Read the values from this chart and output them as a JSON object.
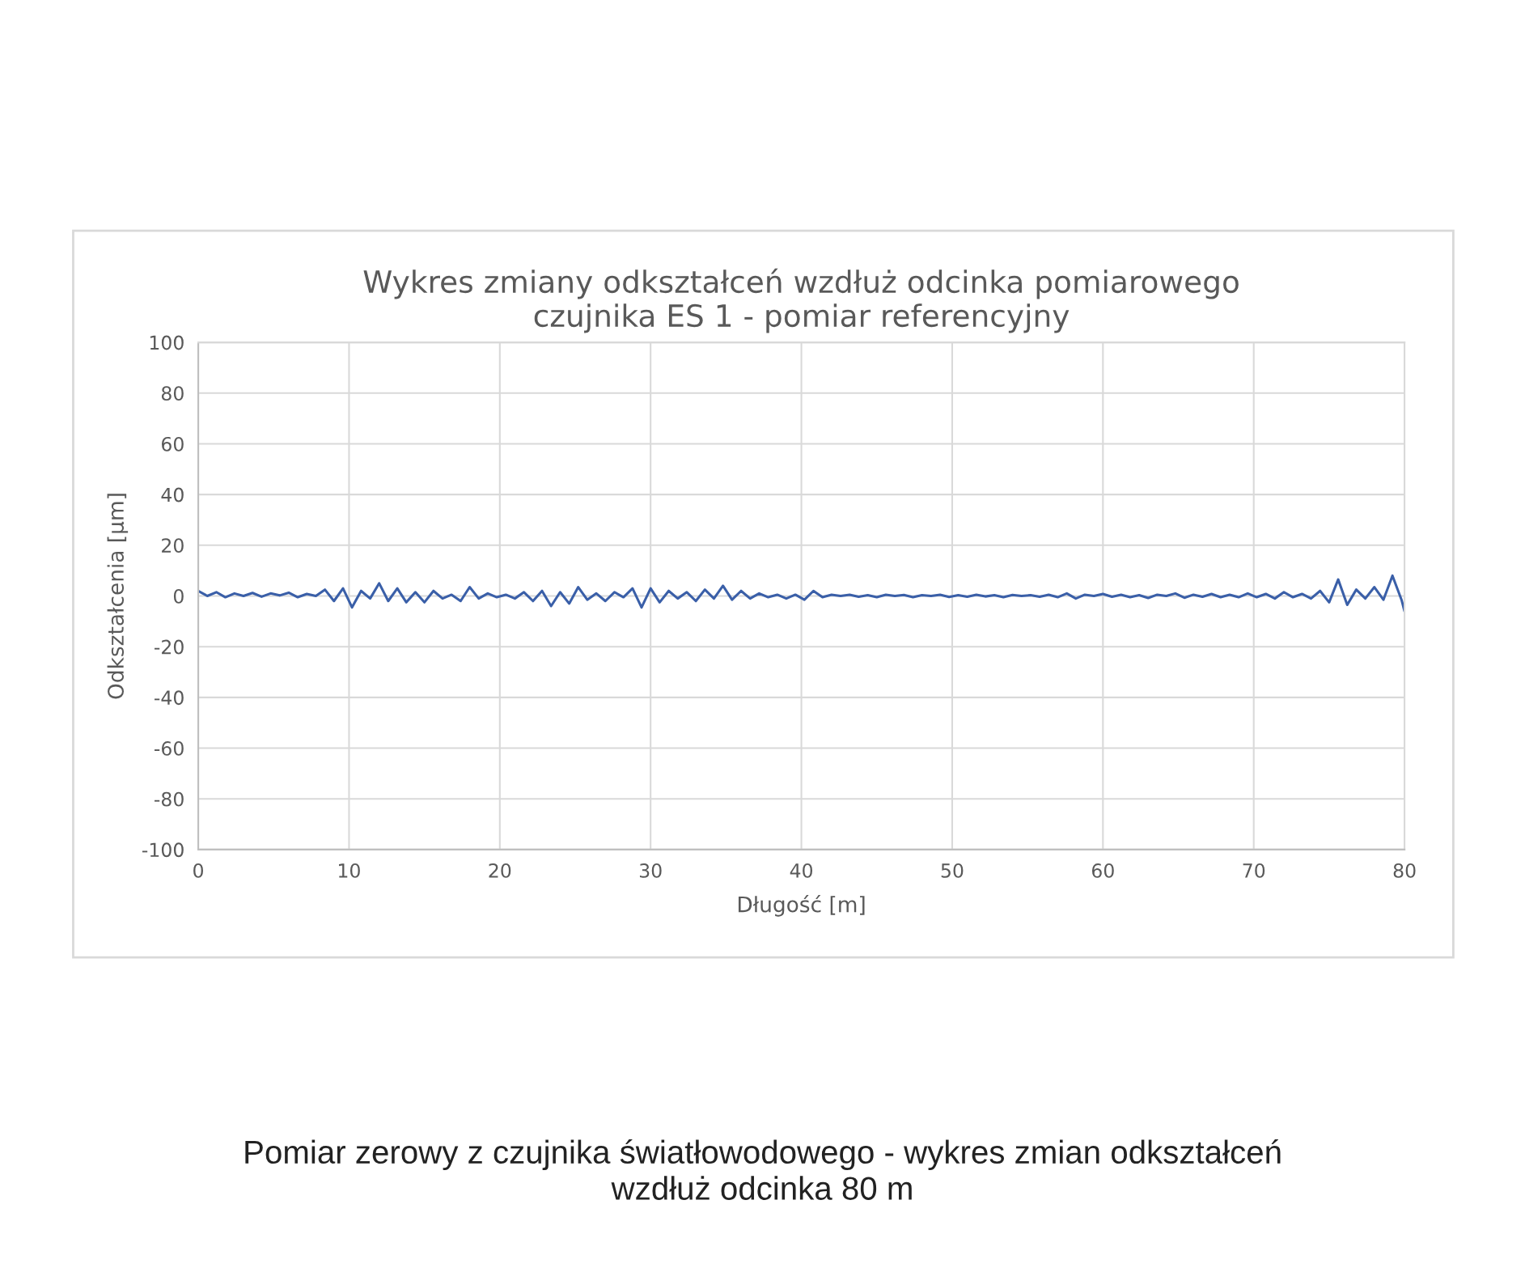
{
  "chart_data": {
    "type": "line",
    "title": "Wykres zmiany odkształceń wzdłuż odcinka pomiarowego\nczujnika ES 1 - pomiar referencyjny",
    "xlabel": "Długość [m]",
    "ylabel": "Odkształcenia [µm]",
    "annotations": [
      "Pomiar zerowy z czujnika światłowodowego - wykres zmian odkształceń\nwzdłuż odcinka 80 m"
    ],
    "xlim": [
      0,
      80
    ],
    "xticks": [
      0,
      10,
      20,
      30,
      40,
      50,
      60,
      70,
      80
    ],
    "ylim": [
      -100,
      100
    ],
    "yticks": [
      -100,
      -80,
      -60,
      -40,
      -20,
      0,
      20,
      40,
      60,
      80,
      100
    ],
    "grid": true,
    "series": [
      {
        "color": "#3a5fa8",
        "x": [
          0,
          0.6,
          1.2,
          1.8,
          2.4,
          3,
          3.6,
          4.2,
          4.8,
          5.4,
          6,
          6.6,
          7.2,
          7.8,
          8.4,
          9,
          9.6,
          10.2,
          10.8,
          11.4,
          12,
          12.6,
          13.2,
          13.8,
          14.4,
          15,
          15.6,
          16.2,
          16.8,
          17.4,
          18,
          18.6,
          19.2,
          19.8,
          20.4,
          21,
          21.6,
          22.2,
          22.8,
          23.4,
          24,
          24.6,
          25.2,
          25.8,
          26.4,
          27,
          27.6,
          28.2,
          28.8,
          29.4,
          30,
          30.6,
          31.2,
          31.8,
          32.4,
          33,
          33.6,
          34.2,
          34.8,
          35.4,
          36,
          36.6,
          37.2,
          37.8,
          38.4,
          39,
          39.6,
          40.2,
          40.8,
          41.4,
          42,
          42.6,
          43.2,
          43.8,
          44.4,
          45,
          45.6,
          46.2,
          46.8,
          47.4,
          48,
          48.6,
          49.2,
          49.8,
          50.4,
          51,
          51.6,
          52.2,
          52.8,
          53.4,
          54,
          54.6,
          55.2,
          55.8,
          56.4,
          57,
          57.6,
          58.2,
          58.8,
          59.4,
          60,
          60.6,
          61.2,
          61.8,
          62.4,
          63,
          63.6,
          64.2,
          64.8,
          65.4,
          66,
          66.6,
          67.2,
          67.8,
          68.4,
          69,
          69.6,
          70.2,
          70.8,
          71.4,
          72,
          72.6,
          73.2,
          73.8,
          74.4,
          75,
          75.6,
          76.2,
          76.8,
          77.4,
          78,
          78.6,
          79.2,
          79.8,
          80
        ],
        "values": [
          2,
          0,
          1.5,
          -0.5,
          1,
          0,
          1.2,
          -0.3,
          1,
          0.2,
          1.3,
          -0.5,
          0.8,
          0,
          2.5,
          -2,
          3,
          -4.5,
          2,
          -1,
          5,
          -2,
          3,
          -2.5,
          1.5,
          -2.5,
          2,
          -1,
          0.5,
          -2,
          3.5,
          -1,
          1,
          -0.5,
          0.5,
          -1,
          1.5,
          -2,
          2,
          -4,
          1.5,
          -3,
          3.5,
          -1.5,
          1,
          -2,
          1.5,
          -0.5,
          3,
          -4.5,
          3,
          -2.5,
          2,
          -1,
          1.5,
          -2,
          2.5,
          -1,
          4,
          -1.5,
          2,
          -1,
          1,
          -0.5,
          0.5,
          -1,
          0.5,
          -1.5,
          2,
          -0.5,
          0.5,
          0,
          0.5,
          -0.3,
          0.3,
          -0.5,
          0.5,
          0,
          0.4,
          -0.5,
          0.3,
          0,
          0.5,
          -0.4,
          0.3,
          -0.3,
          0.5,
          -0.2,
          0.3,
          -0.5,
          0.4,
          0,
          0.3,
          -0.3,
          0.5,
          -0.5,
          1,
          -1,
          0.5,
          0,
          0.8,
          -0.3,
          0.5,
          -0.5,
          0.3,
          -0.8,
          0.5,
          0,
          1,
          -0.7,
          0.5,
          -0.3,
          0.8,
          -0.5,
          0.5,
          -0.5,
          1,
          -0.5,
          0.8,
          -1,
          1.5,
          -0.5,
          0.8,
          -1,
          2,
          -2.5,
          6.5,
          -3.5,
          2.5,
          -1,
          3.5,
          -1.5,
          8,
          -1.5,
          -6
        ]
      }
    ]
  }
}
